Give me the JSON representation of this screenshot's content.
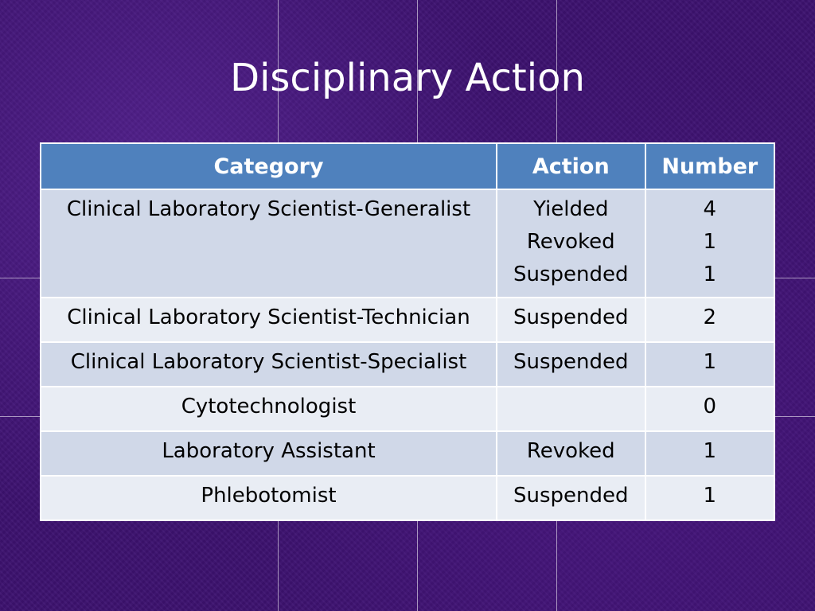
{
  "slide": {
    "title": "Disciplinary Action"
  },
  "table": {
    "headers": [
      "Category",
      "Action",
      "Number"
    ],
    "rows": [
      {
        "category": "Clinical Laboratory Scientist-Generalist",
        "actions": [
          "Yielded",
          "Revoked",
          "Suspended"
        ],
        "numbers": [
          "4",
          "1",
          "1"
        ]
      },
      {
        "category": "Clinical Laboratory Scientist-Technician",
        "actions": [
          "Suspended"
        ],
        "numbers": [
          "2"
        ]
      },
      {
        "category": "Clinical Laboratory Scientist-Specialist",
        "actions": [
          "Suspended"
        ],
        "numbers": [
          "1"
        ]
      },
      {
        "category": "Cytotechnologist",
        "actions": [
          ""
        ],
        "numbers": [
          "0"
        ]
      },
      {
        "category": "Laboratory Assistant",
        "actions": [
          "Revoked"
        ],
        "numbers": [
          "1"
        ]
      },
      {
        "category": "Phlebotomist",
        "actions": [
          "Suspended"
        ],
        "numbers": [
          "1"
        ]
      }
    ]
  },
  "colors": {
    "header": "#4f81bd",
    "row_dark": "#d0d8e8",
    "row_light": "#e9edf4",
    "background": "#3d1270"
  }
}
